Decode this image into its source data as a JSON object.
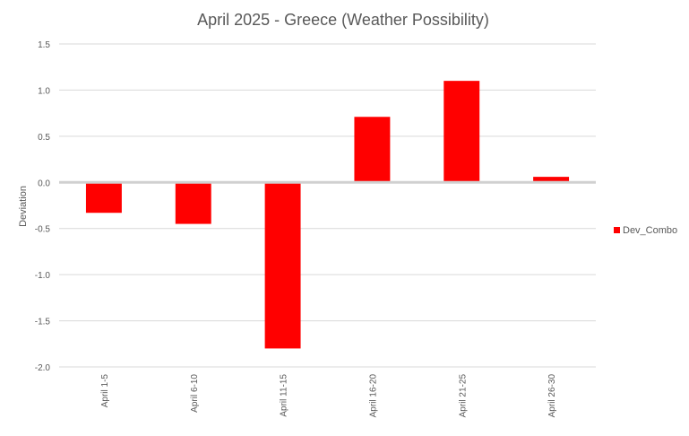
{
  "chart_data": {
    "type": "bar",
    "title": "April 2025 - Greece (Weather Possibility)",
    "xlabel": "",
    "ylabel": "Deviation",
    "categories": [
      "April 1-5",
      "April 6-10",
      "April 11-15",
      "April 16-20",
      "April 21-25",
      "April 26-30"
    ],
    "series": [
      {
        "name": "Dev_Combo",
        "color": "#ff0000",
        "values": [
          -0.33,
          -0.45,
          -1.8,
          0.71,
          1.1,
          0.06
        ]
      }
    ],
    "ylim": [
      -2.0,
      1.5
    ],
    "yticks": [
      1.5,
      1.0,
      0.5,
      0.0,
      -0.5,
      -1.0,
      -1.5,
      -2.0
    ],
    "ytick_labels": [
      "1.5",
      "1.0",
      "0.5",
      "0.0",
      "-0.5",
      "-1.0",
      "-1.5",
      "-2.0"
    ],
    "grid": true,
    "legend_position": "right"
  }
}
